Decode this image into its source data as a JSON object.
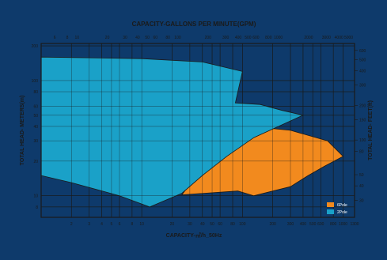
{
  "chart_data": {
    "type": "area",
    "title": "CAPACITY-GALLONS PER MINUTE(GPM)",
    "xlabel": "CAPACITY-㎥/h_50Hz",
    "ylabel_left": "TOTAL HEAD- METERS(m)",
    "ylabel_right": "TOTAL HEAD- FEET(ft)",
    "x_scale": "log",
    "y_scale": "log",
    "x_ticks": [
      "2",
      "3",
      "4",
      "5",
      "6",
      "8",
      "10",
      "20",
      "30",
      "40",
      "50",
      "60",
      "80",
      "100",
      "200",
      "300",
      "400",
      "500",
      "600",
      "800",
      "1000",
      "1300"
    ],
    "gpm_ticks": [
      "2",
      "6",
      "8",
      "10",
      "20",
      "30",
      "40",
      "50",
      "60",
      "80",
      "100",
      "200",
      "300",
      "400",
      "500",
      "600",
      "800",
      "1000",
      "2000",
      "3000",
      "4000",
      "5000"
    ],
    "y_ticks_left": [
      "200",
      "100",
      "80",
      "60",
      "50",
      "40",
      "30",
      "20",
      "10",
      "8"
    ],
    "y_ticks_right": [
      "600",
      "500",
      "400",
      "300",
      "200",
      "150",
      "100",
      "80",
      "50",
      "40",
      "30",
      "20",
      "10"
    ],
    "legend_position": "bottom-right",
    "grid": true,
    "series": [
      {
        "name": "6Pole",
        "color": "#f28a1e",
        "outline": [
          [
            25,
            10.2
          ],
          [
            60,
            28
          ],
          [
            120,
            40
          ],
          [
            300,
            37
          ],
          [
            700,
            30
          ],
          [
            1000,
            22
          ],
          [
            650,
            18
          ],
          [
            450,
            15
          ],
          [
            300,
            12
          ],
          [
            130,
            10
          ],
          [
            90,
            11
          ],
          [
            25,
            10.2
          ]
        ]
      },
      {
        "name": "2Pole",
        "color": "#1aa1c8",
        "outline": [
          [
            1,
            160
          ],
          [
            10,
            155
          ],
          [
            40,
            145
          ],
          [
            100,
            120
          ],
          [
            85,
            64
          ],
          [
            150,
            62
          ],
          [
            250,
            55
          ],
          [
            400,
            50
          ],
          [
            130,
            32
          ],
          [
            70,
            22
          ],
          [
            40,
            15
          ],
          [
            25,
            10.5
          ],
          [
            12,
            8
          ],
          [
            6,
            10
          ],
          [
            2,
            13
          ],
          [
            1,
            15
          ],
          [
            1,
            160
          ]
        ]
      }
    ]
  }
}
